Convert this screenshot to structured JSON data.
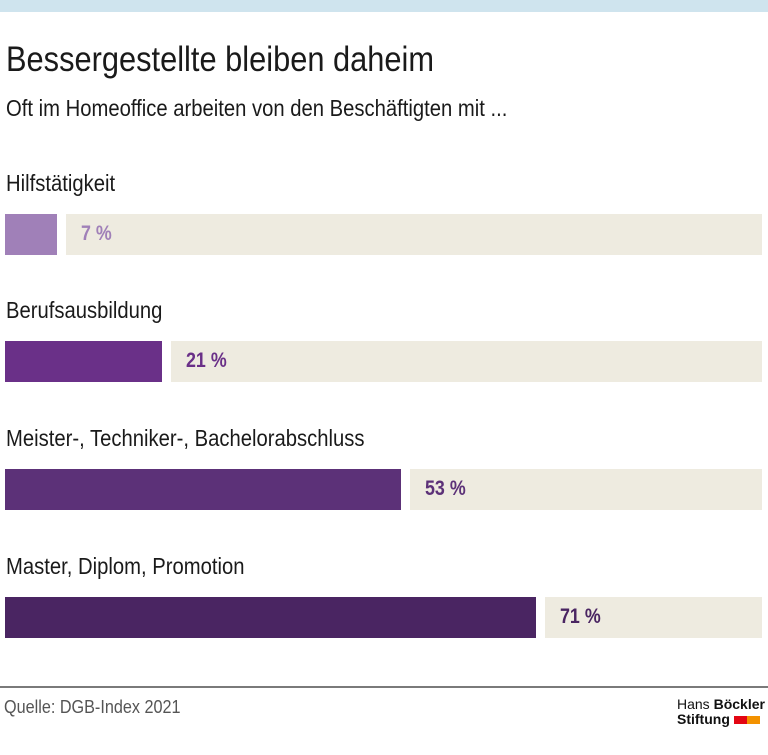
{
  "header": {
    "title": "Bessergestellte bleiben daheim",
    "subtitle": "Oft im Homeoffice arbeiten von den Beschäftigten mit ..."
  },
  "chart_data": {
    "type": "bar",
    "orientation": "horizontal",
    "categories": [
      "Hilfstätigkeit",
      "Berufsausbildung",
      "Meister-, Techniker-, Bachelorabschluss",
      "Master, Diplom, Promotion"
    ],
    "values": [
      7,
      21,
      53,
      71
    ],
    "labels": [
      "7 %",
      "21 %",
      "53 %",
      "71 %"
    ],
    "colors": [
      "#a080b8",
      "#6a3088",
      "#5c3178",
      "#4a2562"
    ],
    "background_color": "#eeebe0",
    "xlim": [
      0,
      100
    ]
  },
  "footer": {
    "source": "Quelle: DGB-Index 2021",
    "logo_line1a": "Hans ",
    "logo_line1b": "Böckler",
    "logo_line2": "Stiftung",
    "logo_colors": [
      "#e30613",
      "#f39200"
    ]
  }
}
